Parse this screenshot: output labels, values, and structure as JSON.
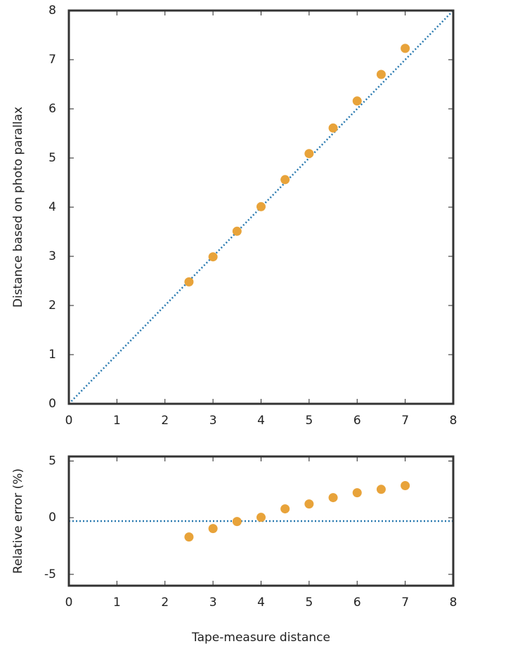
{
  "chart_data": [
    {
      "type": "scatter",
      "ylabel": "Distance based on photo parallax",
      "x": [
        2.5,
        3,
        3.5,
        4,
        4.5,
        5,
        5.5,
        6,
        6.5,
        7
      ],
      "series": [
        {
          "color": "#e8a33a",
          "values": [
            2.48,
            2.99,
            3.51,
            4.01,
            4.56,
            5.09,
            5.61,
            6.16,
            6.7,
            7.23
          ]
        }
      ],
      "reference_line": {
        "color": "#2a7ab0",
        "x": [
          0,
          8
        ],
        "y": [
          0,
          8
        ]
      },
      "xlim": [
        0,
        8
      ],
      "xticks": [
        0,
        1,
        2,
        3,
        4,
        5,
        6,
        7,
        8
      ],
      "ylim": [
        0,
        8
      ],
      "yticks": [
        0,
        1,
        2,
        3,
        4,
        5,
        6,
        7,
        8
      ]
    },
    {
      "type": "scatter",
      "ylabel": "Relative error (%)",
      "xlabel": "Tape-measure distance",
      "x": [
        2.5,
        3,
        3.5,
        4,
        4.5,
        5,
        5.5,
        6,
        6.5,
        7
      ],
      "series": [
        {
          "color": "#e8a33a",
          "values": [
            -1.7,
            -0.96,
            -0.34,
            0.03,
            0.78,
            1.21,
            1.77,
            2.2,
            2.5,
            2.83
          ]
        }
      ],
      "reference_line": {
        "color": "#2a7ab0",
        "x": [
          0,
          8
        ],
        "y": [
          -0.3,
          -0.3
        ]
      },
      "xlim": [
        0,
        8
      ],
      "xticks": [
        0,
        1,
        2,
        3,
        4,
        5,
        6,
        7,
        8
      ],
      "ylim": [
        -6,
        5.4
      ],
      "yticks": [
        -5,
        0,
        5
      ]
    }
  ]
}
